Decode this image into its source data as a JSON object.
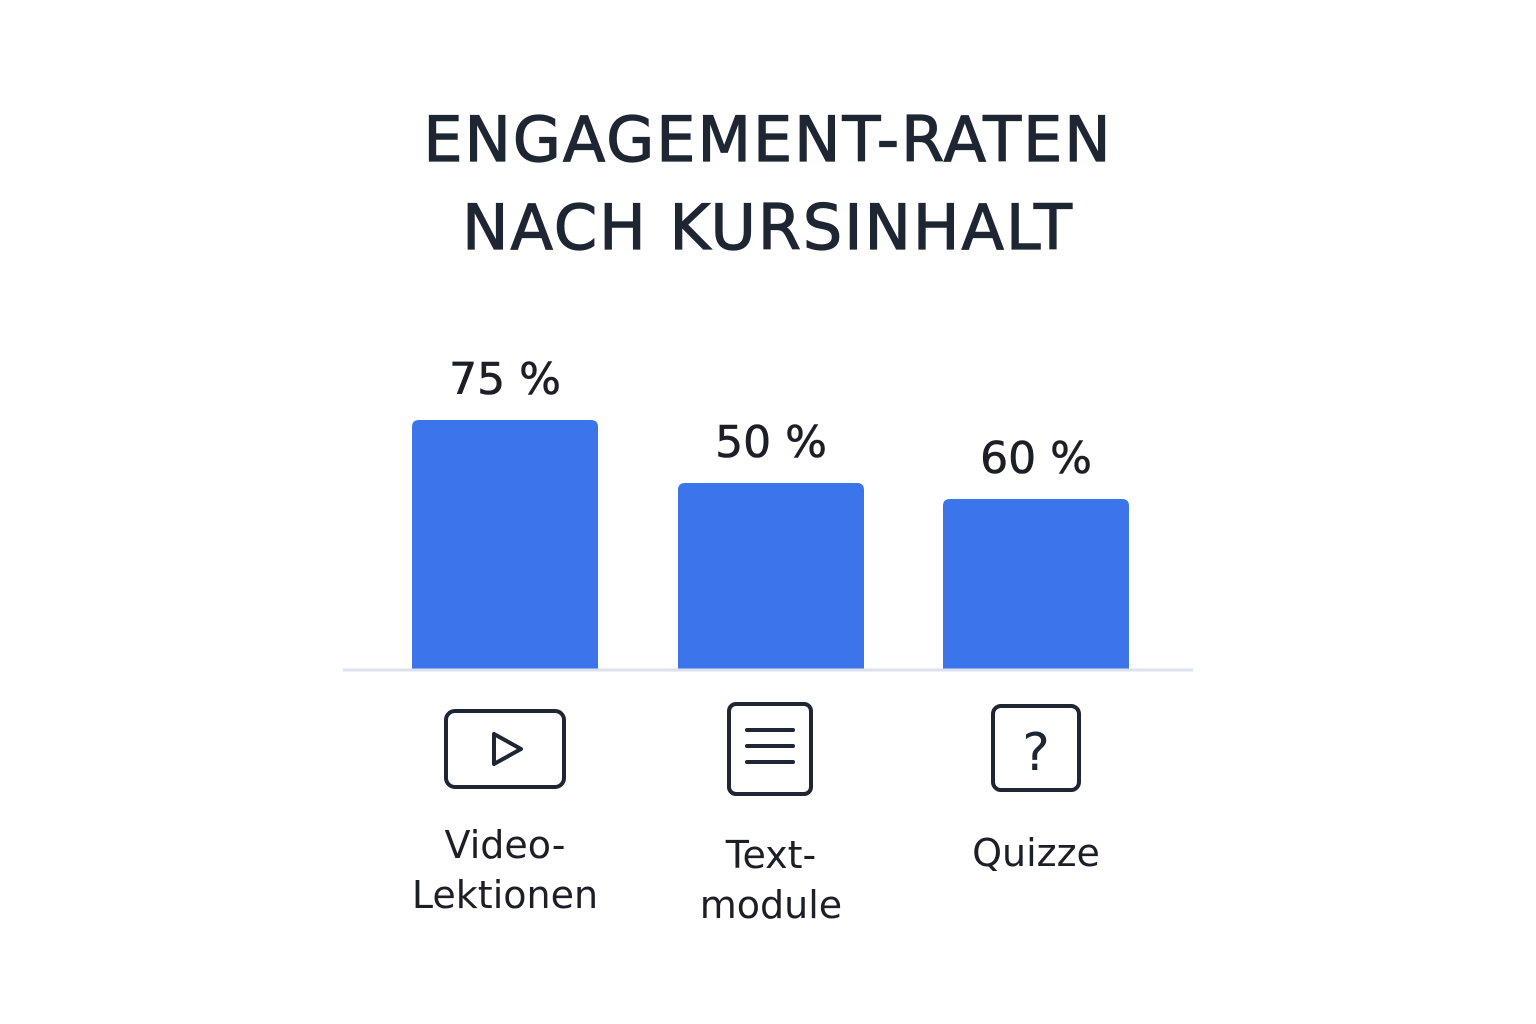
{
  "chart_data": {
    "type": "bar",
    "title": [
      "ENGAGEMENT-RATEN",
      "NACH KURSINHALT"
    ],
    "categories": [
      {
        "label_lines": [
          "Video-",
          "Lektionen"
        ],
        "icon": "video-play-icon"
      },
      {
        "label_lines": [
          "Text-",
          "module"
        ],
        "icon": "text-document-icon"
      },
      {
        "label_lines": [
          "Quizze"
        ],
        "icon": "question-mark-icon"
      }
    ],
    "values": [
      75,
      50,
      60
    ],
    "value_labels": [
      "75 %",
      "50 %",
      "60 %"
    ],
    "unit": "%",
    "grid": false,
    "legend": "none"
  },
  "colors": {
    "bar": "#3b74eb",
    "axis": "#dde2ea",
    "text": "#1f2633"
  }
}
